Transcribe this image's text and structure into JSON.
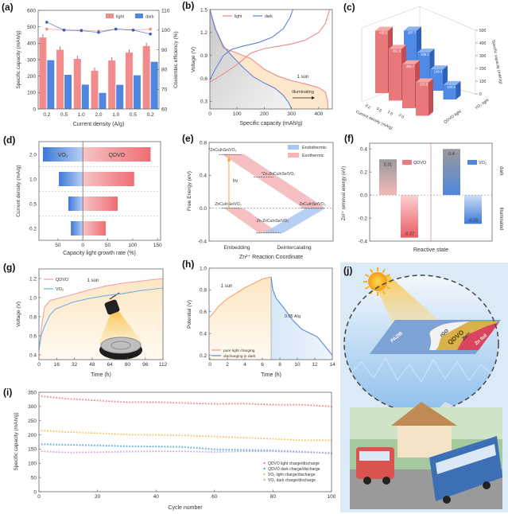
{
  "chart_data": [
    {
      "panel": "(a)",
      "type": "bar",
      "categories": [
        "0.2",
        "0.5",
        "1.0",
        "2.0",
        "1.0",
        "0.5",
        "0.2"
      ],
      "series": [
        {
          "name": "light",
          "values": [
            435,
            360,
            305,
            233,
            295,
            343,
            383
          ],
          "color": "#f28b8b"
        },
        {
          "name": "dark",
          "values": [
            297,
            208,
            148,
            98,
            147,
            205,
            287
          ],
          "color": "#4f86df"
        }
      ],
      "secondary_series": [
        {
          "of": "light",
          "values": [
            100.5,
            100,
            100,
            99.5,
            100.5,
            100,
            100.5
          ],
          "color": "#f28b8b"
        },
        {
          "of": "dark",
          "values": [
            104,
            100,
            99.7,
            98.8,
            100.5,
            100,
            98
          ],
          "color": "#3b5bbf"
        }
      ],
      "xlabel": "Current density (A/g)",
      "ylabel": "Specific capacity (mAh/g)",
      "y2label": "Coulombic efficiency (%)",
      "ylim": [
        0,
        600
      ],
      "y2lim": [
        60,
        110
      ],
      "yticks": [
        "0",
        "100",
        "200",
        "300",
        "400",
        "500",
        "600"
      ],
      "y2ticks": [
        "60",
        "70",
        "80",
        "90",
        "100",
        "110"
      ],
      "legend": "top-right"
    },
    {
      "panel": "(b)",
      "type": "line",
      "series": [
        {
          "name": "light",
          "color": "#f08a8a",
          "charge": [
            [
              0,
              0.55
            ],
            [
              50,
              0.66
            ],
            [
              100,
              0.78
            ],
            [
              150,
              0.93
            ],
            [
              200,
              0.99
            ],
            [
              250,
              1.02
            ],
            [
              300,
              1.05
            ],
            [
              350,
              1.1
            ],
            [
              400,
              1.2
            ],
            [
              425,
              1.32
            ],
            [
              440,
              1.5
            ]
          ],
          "discharge": [
            [
              0,
              1.5
            ],
            [
              25,
              1.2
            ],
            [
              50,
              1.0
            ],
            [
              100,
              0.93
            ],
            [
              150,
              0.86
            ],
            [
              200,
              0.72
            ],
            [
              250,
              0.63
            ],
            [
              300,
              0.57
            ],
            [
              350,
              0.53
            ],
            [
              400,
              0.48
            ],
            [
              425,
              0.42
            ],
            [
              432,
              0.32
            ],
            [
              435,
              0.2
            ]
          ]
        },
        {
          "name": "dark",
          "color": "#5b86d9",
          "charge": [
            [
              0,
              0.58
            ],
            [
              20,
              0.72
            ],
            [
              50,
              0.9
            ],
            [
              80,
              0.98
            ],
            [
              120,
              1.02
            ],
            [
              180,
              1.07
            ],
            [
              230,
              1.14
            ],
            [
              270,
              1.25
            ],
            [
              295,
              1.4
            ],
            [
              305,
              1.5
            ]
          ],
          "discharge": [
            [
              0,
              1.5
            ],
            [
              20,
              1.25
            ],
            [
              50,
              1.02
            ],
            [
              80,
              0.9
            ],
            [
              120,
              0.75
            ],
            [
              160,
              0.62
            ],
            [
              200,
              0.54
            ],
            [
              240,
              0.47
            ],
            [
              270,
              0.38
            ],
            [
              290,
              0.28
            ],
            [
              300,
              0.2
            ]
          ]
        }
      ],
      "annotations": [
        "1 sun",
        "Illuminating"
      ],
      "xlabel": "Specific capacity (mAh/g)",
      "ylabel": "Voltage (V)",
      "xlim": [
        0,
        450
      ],
      "ylim": [
        0.2,
        1.5
      ],
      "xticks": [
        "0",
        "100",
        "200",
        "300",
        "400"
      ],
      "yticks": [
        "0.3",
        "0.6",
        "0.9",
        "1.2",
        "1.5"
      ],
      "legend": "top-left"
    },
    {
      "panel": "(c)",
      "type": "bar3d",
      "categories": [
        "0.2",
        "0.5",
        "1.0",
        "2.0"
      ],
      "series": [
        {
          "name": "QDVO light",
          "values": [
            435.5,
            361.6,
            306.7,
            233.6
          ],
          "labels": [
            "435.5",
            "361.6",
            "306.7",
            "233.6"
          ],
          "color": "#e8787a"
        },
        {
          "name": "VO₂ light",
          "values": [
            297.7,
            205.2,
            148.6,
            100.5
          ],
          "labels": [
            "297.7",
            "205.2",
            "148.6",
            "100.5"
          ],
          "color": "#4f8ae6"
        }
      ],
      "xlabel": "Current density (mA/g)",
      "zlabel": "Specific capacity (mAh/g)",
      "zlim": [
        0,
        500
      ],
      "zticks": [
        "0",
        "100",
        "200",
        "300",
        "400",
        "500"
      ]
    },
    {
      "panel": "(d)",
      "type": "bar",
      "orientation": "horizontal",
      "categories": [
        "2.0",
        "1.0",
        "0.5",
        "0.2"
      ],
      "series": [
        {
          "name": "VO₂",
          "direction": "left",
          "values": [
            80,
            48,
            29,
            24
          ],
          "color": "#4f86df"
        },
        {
          "name": "QDVO",
          "direction": "right",
          "values": [
            136,
            103,
            70,
            46
          ],
          "color": "#f07b7f"
        }
      ],
      "xlabel": "Capacity light growth rate (%)",
      "ylabel": "Current density (mA/g)",
      "xlim": [
        -88,
        156
      ],
      "xtick_values": [
        -50,
        0,
        50,
        100,
        150
      ],
      "xticks": [
        "50",
        "0",
        "50",
        "100",
        "150"
      ]
    },
    {
      "panel": "(e)",
      "type": "diagram",
      "levels": [
        {
          "label": "*ZnCuInSe/VO₂",
          "energy": 0.65
        },
        {
          "label": "*Zn-ZnCuInSe/VO₂",
          "energy": 0.38
        },
        {
          "label": "ZnCuInSe/VO₂",
          "energy": 0.0
        },
        {
          "label": "Zn-ZnCuInSe/VO₂",
          "energy": -0.3
        },
        {
          "label": "ZnCuInSe/VO₂",
          "energy": 0.0
        }
      ],
      "legend": [
        {
          "name": "Endothermic",
          "color": "#a8c8f0"
        },
        {
          "name": "Exothermic",
          "color": "#f5b5b8"
        }
      ],
      "arrow_label": "hν",
      "xticks": [
        "Embedding",
        "Deintercalating"
      ],
      "xlabel": "Zn²⁺ Reaction Coordinate",
      "ylabel": "Free Energy (eV)",
      "ylim": [
        -0.4,
        0.8
      ],
      "yticks": [
        "-0.4",
        "0.0",
        "0.4",
        "0.8"
      ]
    },
    {
      "panel": "(f)",
      "type": "bar",
      "categories": [
        "dark",
        "Illuminated"
      ],
      "series": [
        {
          "name": "QDVO",
          "values": [
            0.31,
            -0.37
          ],
          "labels": [
            "0.31",
            "-0.37"
          ],
          "color": "#f07b7f"
        },
        {
          "name": "VO₂",
          "values": [
            0.4,
            -0.25
          ],
          "labels": [
            "0.4",
            "-0.25"
          ],
          "color": "#4f86df"
        }
      ],
      "xlabel": "Reactive state",
      "ylabel": "Zn²⁺ removal energy (eV)",
      "ylim": [
        -0.4,
        0.45
      ],
      "yticks": [
        "-0.4",
        "-0.2",
        "0.0",
        "0.2",
        "0.4"
      ]
    },
    {
      "panel": "(g)",
      "type": "line",
      "series": [
        {
          "name": "QDVO",
          "color": "#f0a0a8",
          "points": [
            [
              0,
              0.45
            ],
            [
              1,
              0.55
            ],
            [
              3,
              0.75
            ],
            [
              5,
              0.9
            ],
            [
              10,
              0.97
            ],
            [
              20,
              1.0
            ],
            [
              30,
              1.03
            ],
            [
              45,
              1.08
            ],
            [
              60,
              1.12
            ],
            [
              75,
              1.15
            ],
            [
              90,
              1.17
            ],
            [
              112,
              1.2
            ]
          ]
        },
        {
          "name": "VO₂",
          "color": "#6fb2e6",
          "points": [
            [
              0,
              0.45
            ],
            [
              2,
              0.6
            ],
            [
              5,
              0.7
            ],
            [
              10,
              0.82
            ],
            [
              15,
              0.88
            ],
            [
              30,
              0.95
            ],
            [
              45,
              0.99
            ],
            [
              60,
              1.02
            ],
            [
              75,
              1.04
            ],
            [
              90,
              1.07
            ],
            [
              112,
              1.1
            ]
          ]
        }
      ],
      "annotation": "1 sun",
      "xlabel": "Time (h)",
      "ylabel": "Voltage (V)",
      "xlim": [
        0,
        112
      ],
      "ylim": [
        0.35,
        1.3
      ],
      "xticks": [
        "0",
        "16",
        "32",
        "48",
        "64",
        "80",
        "96",
        "112"
      ],
      "yticks": [
        "0.4",
        "0.6",
        "0.8",
        "1.0",
        "1.2"
      ]
    },
    {
      "panel": "(h)",
      "type": "line",
      "series": [
        {
          "name": "pure light charging",
          "color": "#f2a07a",
          "points": [
            [
              0,
              0.55
            ],
            [
              0.5,
              0.6
            ],
            [
              1,
              0.65
            ],
            [
              2,
              0.72
            ],
            [
              3,
              0.77
            ],
            [
              4,
              0.82
            ],
            [
              5,
              0.86
            ],
            [
              6,
              0.9
            ],
            [
              7,
              0.92
            ]
          ]
        },
        {
          "name": "discharging in dark",
          "color": "#5b86d9",
          "points": [
            [
              7,
              0.92
            ],
            [
              7.2,
              0.8
            ],
            [
              7.6,
              0.72
            ],
            [
              8.5,
              0.63
            ],
            [
              9.5,
              0.52
            ],
            [
              10.5,
              0.44
            ],
            [
              11.5,
              0.4
            ],
            [
              12.3,
              0.37
            ],
            [
              13,
              0.3
            ],
            [
              14,
              0.2
            ]
          ]
        }
      ],
      "annotations": [
        "1 sun",
        "0.05 A/g"
      ],
      "xlabel": "Time (h)",
      "ylabel": "Potential (V)",
      "xlim": [
        0,
        14
      ],
      "ylim": [
        0.16,
        1.0
      ],
      "xticks": [
        "0",
        "2",
        "4",
        "6",
        "8",
        "10",
        "12",
        "14"
      ],
      "yticks": [
        "0.2",
        "0.4",
        "0.6",
        "0.8",
        "1.0"
      ],
      "legend": "bottom-left"
    },
    {
      "panel": "(i)",
      "type": "scatter",
      "x": [
        1,
        10,
        20,
        30,
        40,
        50,
        60,
        70,
        80,
        90,
        100
      ],
      "series": [
        {
          "name": "QDVO light charge/discharge",
          "color": "#f07b85",
          "values": [
            337,
            328,
            322,
            316,
            316,
            313,
            310,
            311,
            307,
            307,
            301
          ]
        },
        {
          "name": "QDVO dark charge/discharge",
          "color": "#4aa3d8",
          "values": [
            168,
            166,
            164,
            161,
            160,
            158,
            150,
            148,
            146,
            142,
            136
          ]
        },
        {
          "name": "VO₂ light charge/discharge",
          "color": "#f2c14e",
          "values": [
            216,
            211,
            207,
            202,
            201,
            199,
            195,
            191,
            187,
            182,
            182
          ]
        },
        {
          "name": "VO₂ dark charge/discharge",
          "color": "#c9a0e8",
          "values": [
            143,
            139,
            140,
            142,
            143,
            143,
            141,
            143,
            143,
            140,
            138
          ]
        }
      ],
      "xlabel": "Cycle number",
      "ylabel": "Specific capacity (mAh/g)",
      "xlim": [
        0,
        100
      ],
      "ylim": [
        0,
        350
      ],
      "xticks": [
        "0",
        "20",
        "40",
        "60",
        "80",
        "100"
      ],
      "yticks": [
        "0",
        "50",
        "100",
        "150",
        "200",
        "250",
        "300",
        "350"
      ],
      "legend": "bottom-right"
    }
  ],
  "illustration": {
    "panel": "(j)",
    "labels": [
      "PAZIB",
      "rGO",
      "QDVO",
      "Zn²⁺",
      "Zn foil"
    ],
    "colors": {
      "sky": "#dbeaf7",
      "sun": "#f5b324",
      "bus": "#3d6fb5",
      "truck": "#d9534f"
    }
  }
}
